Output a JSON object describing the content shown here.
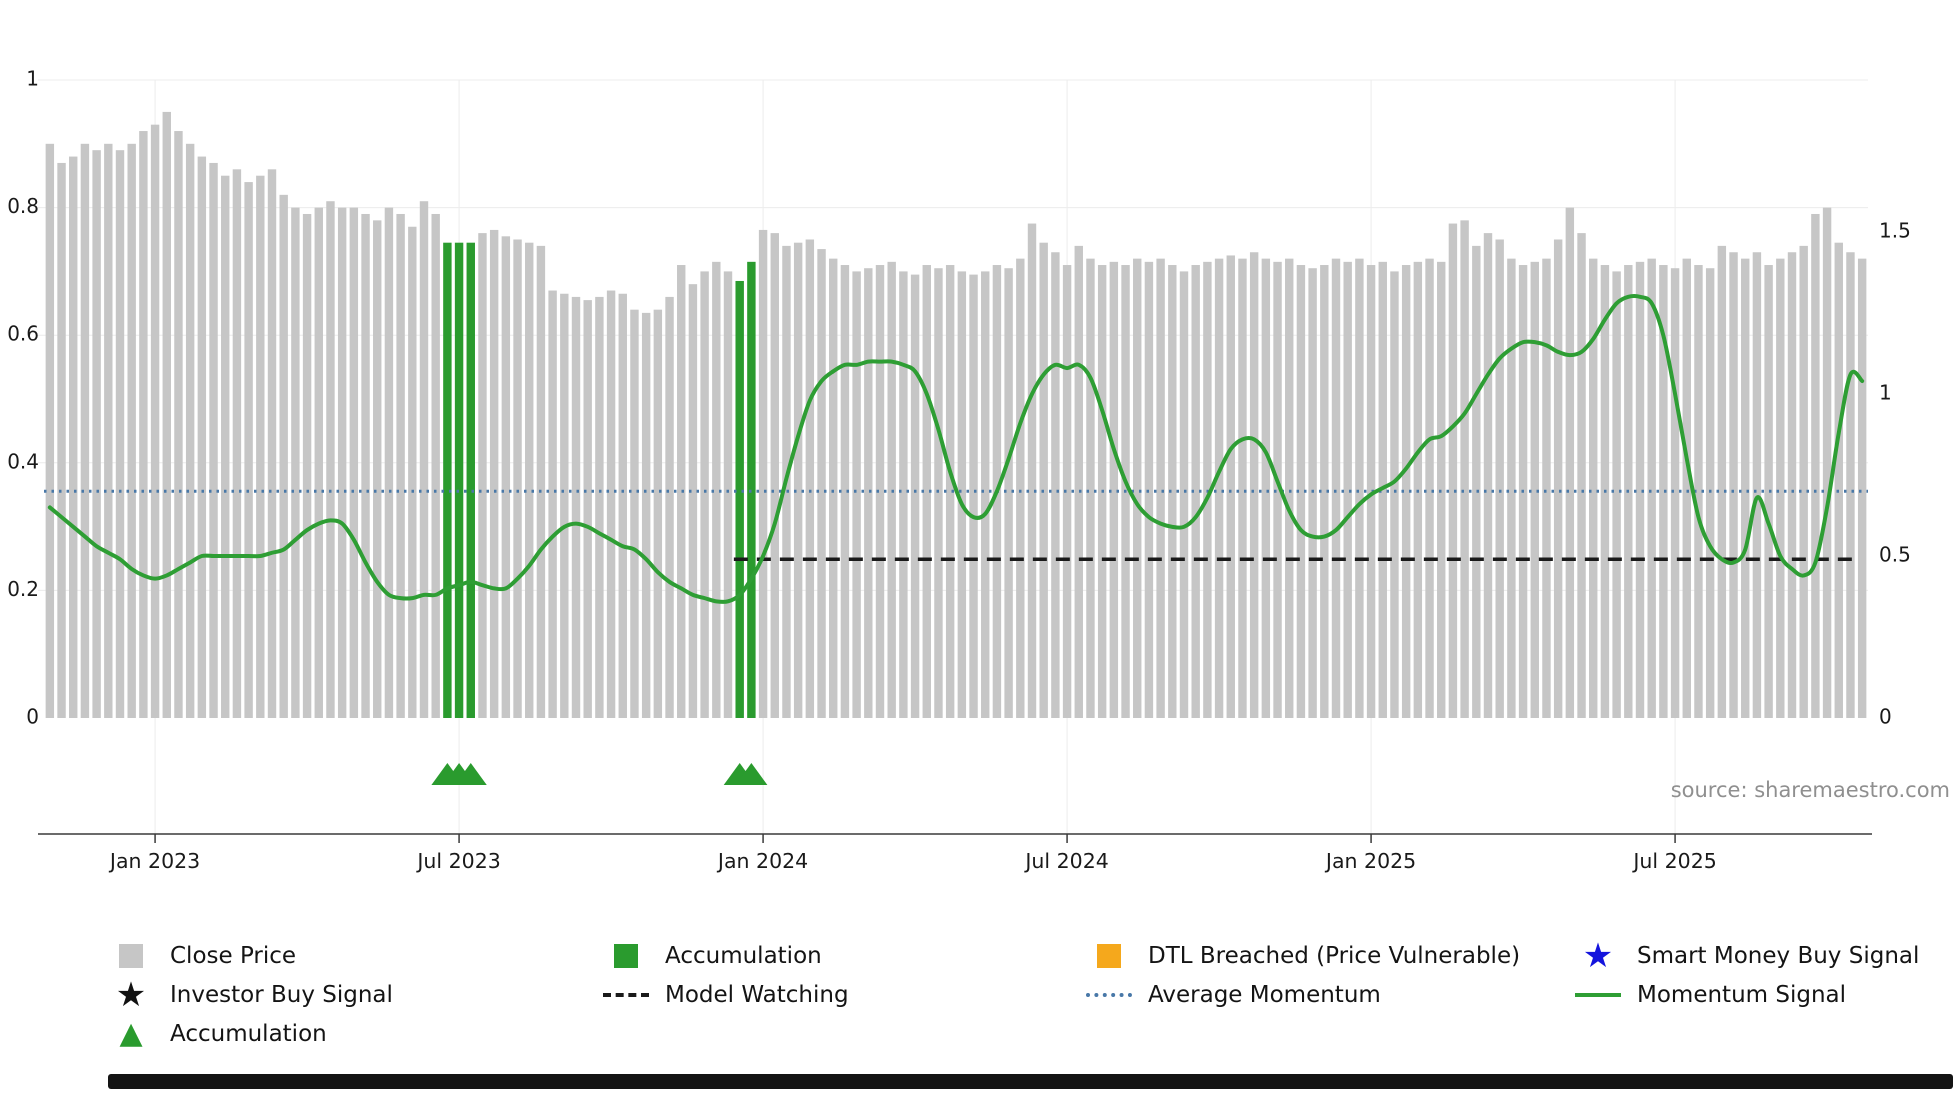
{
  "source": "source: sharemaestro.com",
  "legend": {
    "items": [
      {
        "label": "Close Price",
        "marker": "square",
        "color": "bar"
      },
      {
        "label": "Accumulation",
        "marker": "square",
        "color": "accumulation"
      },
      {
        "label": "DTL Breached (Price Vulnerable)",
        "marker": "square",
        "color": "dtl"
      },
      {
        "label": "Smart Money Buy Signal",
        "marker": "star",
        "color": "smart_money"
      },
      {
        "label": "Investor Buy Signal",
        "marker": "star",
        "color": "black"
      },
      {
        "label": "Model Watching",
        "marker": "dashed",
        "color": "model"
      },
      {
        "label": "Average Momentum",
        "marker": "dotted",
        "color": "average"
      },
      {
        "label": "Momentum Signal",
        "marker": "solid",
        "color": "momentum"
      },
      {
        "label": "Accumulation",
        "marker": "triangle",
        "color": "accumulation"
      }
    ]
  },
  "chart_data": {
    "type": "bar",
    "title": "",
    "xlabel": "",
    "ylabel": "",
    "x_ticks": [
      {
        "week": 9,
        "label": "Jan 2023"
      },
      {
        "week": 35,
        "label": "Jul 2023"
      },
      {
        "week": 61,
        "label": "Jan 2024"
      },
      {
        "week": 87,
        "label": "Jul 2024"
      },
      {
        "week": 113,
        "label": "Jan 2025"
      },
      {
        "week": 139,
        "label": "Jul 2025"
      }
    ],
    "left_axis": {
      "ticks": [
        0,
        0.2,
        0.4,
        0.6,
        0.8,
        1
      ],
      "range": [
        0,
        1
      ],
      "series": "Close Price (normalised)"
    },
    "right_axis": {
      "ticks": [
        0,
        0.5,
        1,
        1.5
      ],
      "range": [
        0,
        1.5
      ],
      "series": "Momentum"
    },
    "bars": {
      "name": "Close Price",
      "values": [
        0.9,
        0.87,
        0.88,
        0.9,
        0.89,
        0.9,
        0.89,
        0.9,
        0.92,
        0.93,
        0.95,
        0.92,
        0.9,
        0.88,
        0.87,
        0.85,
        0.86,
        0.84,
        0.85,
        0.86,
        0.82,
        0.8,
        0.79,
        0.8,
        0.81,
        0.8,
        0.8,
        0.79,
        0.78,
        0.8,
        0.79,
        0.77,
        0.81,
        0.79,
        0.745,
        0.745,
        0.745,
        0.76,
        0.765,
        0.755,
        0.75,
        0.745,
        0.74,
        0.67,
        0.665,
        0.66,
        0.655,
        0.66,
        0.67,
        0.665,
        0.64,
        0.635,
        0.64,
        0.66,
        0.71,
        0.68,
        0.7,
        0.715,
        0.7,
        0.685,
        0.715,
        0.765,
        0.76,
        0.74,
        0.745,
        0.75,
        0.735,
        0.72,
        0.71,
        0.7,
        0.705,
        0.71,
        0.715,
        0.7,
        0.695,
        0.71,
        0.705,
        0.71,
        0.7,
        0.695,
        0.7,
        0.71,
        0.705,
        0.72,
        0.775,
        0.745,
        0.73,
        0.71,
        0.74,
        0.72,
        0.71,
        0.715,
        0.71,
        0.72,
        0.715,
        0.72,
        0.71,
        0.7,
        0.71,
        0.715,
        0.72,
        0.725,
        0.72,
        0.73,
        0.72,
        0.715,
        0.72,
        0.71,
        0.705,
        0.71,
        0.72,
        0.715,
        0.72,
        0.71,
        0.715,
        0.7,
        0.71,
        0.715,
        0.72,
        0.715,
        0.775,
        0.78,
        0.74,
        0.76,
        0.75,
        0.72,
        0.71,
        0.715,
        0.72,
        0.75,
        0.8,
        0.76,
        0.72,
        0.71,
        0.7,
        0.71,
        0.715,
        0.72,
        0.71,
        0.705,
        0.72,
        0.71,
        0.705,
        0.74,
        0.73,
        0.72,
        0.73,
        0.71,
        0.72,
        0.73,
        0.74,
        0.79,
        0.8,
        0.745,
        0.73,
        0.72
      ],
      "accumulation_indices": [
        34,
        35,
        36,
        59,
        60
      ]
    },
    "momentum": {
      "name": "Momentum Signal",
      "values": [
        0.65,
        0.62,
        0.59,
        0.56,
        0.53,
        0.51,
        0.49,
        0.46,
        0.44,
        0.43,
        0.44,
        0.46,
        0.48,
        0.5,
        0.5,
        0.5,
        0.5,
        0.5,
        0.5,
        0.51,
        0.52,
        0.55,
        0.58,
        0.6,
        0.61,
        0.6,
        0.55,
        0.48,
        0.42,
        0.38,
        0.37,
        0.37,
        0.38,
        0.38,
        0.4,
        0.41,
        0.42,
        0.41,
        0.4,
        0.4,
        0.43,
        0.47,
        0.52,
        0.56,
        0.59,
        0.6,
        0.59,
        0.57,
        0.55,
        0.53,
        0.52,
        0.49,
        0.45,
        0.42,
        0.4,
        0.38,
        0.37,
        0.36,
        0.36,
        0.38,
        0.43,
        0.5,
        0.6,
        0.74,
        0.87,
        0.98,
        1.04,
        1.07,
        1.09,
        1.09,
        1.1,
        1.1,
        1.1,
        1.09,
        1.07,
        1.0,
        0.89,
        0.76,
        0.66,
        0.62,
        0.63,
        0.7,
        0.8,
        0.91,
        1.0,
        1.06,
        1.09,
        1.08,
        1.09,
        1.05,
        0.95,
        0.83,
        0.73,
        0.66,
        0.62,
        0.6,
        0.59,
        0.59,
        0.62,
        0.68,
        0.76,
        0.83,
        0.86,
        0.86,
        0.82,
        0.73,
        0.64,
        0.58,
        0.56,
        0.56,
        0.58,
        0.62,
        0.66,
        0.69,
        0.71,
        0.73,
        0.77,
        0.82,
        0.86,
        0.87,
        0.9,
        0.94,
        1.0,
        1.06,
        1.11,
        1.14,
        1.16,
        1.16,
        1.15,
        1.13,
        1.12,
        1.13,
        1.17,
        1.23,
        1.28,
        1.3,
        1.3,
        1.28,
        1.18,
        1.0,
        0.8,
        0.62,
        0.53,
        0.49,
        0.48,
        0.52,
        0.68,
        0.6,
        0.5,
        0.46,
        0.44,
        0.48,
        0.65,
        0.88,
        1.06,
        1.04
      ]
    },
    "average_momentum": 0.7,
    "model_watching": {
      "value": 0.49,
      "start_week": 59
    },
    "accumulation_marker_weeks": [
      34,
      35,
      36,
      59,
      60
    ],
    "colors": {
      "bar": "#c6c6c6",
      "accumulation": "#2a9b2e",
      "momentum": "#2e9e34",
      "average": "#4878a8",
      "model": "#1a1a1a",
      "black": "#111111",
      "dtl": "#f5a81c",
      "smart_money": "#1414dd",
      "axis_text": "#1a1a1a",
      "spine": "#3a3a3a",
      "grid": "#ececec"
    }
  }
}
